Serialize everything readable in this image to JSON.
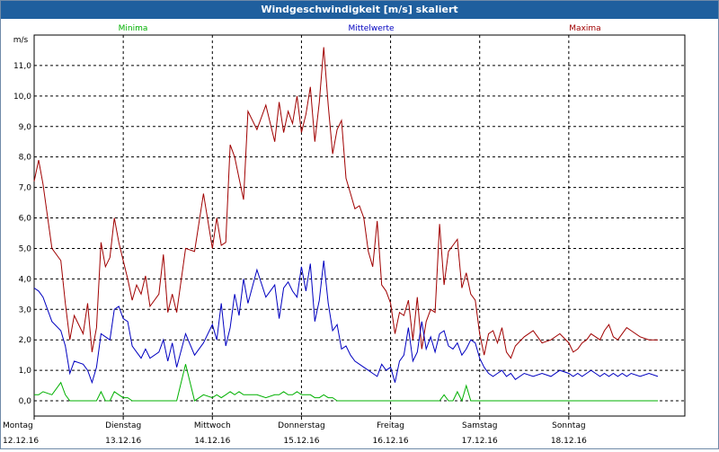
{
  "window": {
    "title": "Windgeschwindigkeit [m/s] skaliert"
  },
  "legend": {
    "min": "Minima",
    "mean": "Mittelwerte",
    "max": "Maxima"
  },
  "colors": {
    "min": "#00b000",
    "mean": "#0000c0",
    "max": "#a00000"
  },
  "chart_data": {
    "type": "line",
    "title": "Windgeschwindigkeit [m/s] skaliert",
    "ylabel": "m/s",
    "ylim": [
      -0.5,
      12.0
    ],
    "xlim": [
      0,
      7
    ],
    "yticks": [
      "0,0",
      "1,0",
      "2,0",
      "3,0",
      "4,0",
      "5,0",
      "6,0",
      "7,0",
      "8,0",
      "9,0",
      "10,0",
      "11,0"
    ],
    "xticks": [
      {
        "day": "Montag",
        "date": "12.12.16"
      },
      {
        "day": "Dienstag",
        "date": "13.12.16"
      },
      {
        "day": "Mittwoch",
        "date": "14.12.16"
      },
      {
        "day": "Donnerstag",
        "date": "15.12.16"
      },
      {
        "day": "Freitag",
        "date": "16.12.16"
      },
      {
        "day": "Samstag",
        "date": "17.12.16"
      },
      {
        "day": "Sonntag",
        "date": "18.12.16"
      }
    ],
    "grid": true,
    "series": [
      {
        "name": "Maxima",
        "x": [
          0.0,
          0.05,
          0.1,
          0.2,
          0.3,
          0.35,
          0.4,
          0.45,
          0.55,
          0.6,
          0.65,
          0.7,
          0.75,
          0.8,
          0.85,
          0.9,
          0.95,
          1.0,
          1.05,
          1.1,
          1.15,
          1.2,
          1.25,
          1.3,
          1.4,
          1.45,
          1.5,
          1.55,
          1.6,
          1.7,
          1.8,
          1.9,
          2.0,
          2.05,
          2.1,
          2.15,
          2.2,
          2.25,
          2.3,
          2.35,
          2.4,
          2.5,
          2.6,
          2.7,
          2.75,
          2.8,
          2.85,
          2.9,
          2.95,
          3.0,
          3.05,
          3.1,
          3.15,
          3.2,
          3.25,
          3.3,
          3.35,
          3.4,
          3.45,
          3.5,
          3.55,
          3.6,
          3.65,
          3.7,
          3.75,
          3.8,
          3.85,
          3.9,
          3.95,
          4.0,
          4.05,
          4.1,
          4.15,
          4.2,
          4.25,
          4.3,
          4.35,
          4.4,
          4.45,
          4.5,
          4.55,
          4.6,
          4.65,
          4.7,
          4.75,
          4.8,
          4.85,
          4.9,
          4.95,
          5.0,
          5.05,
          5.1,
          5.15,
          5.2,
          5.25,
          5.3,
          5.35,
          5.4,
          5.5,
          5.6,
          5.7,
          5.8,
          5.9,
          6.0,
          6.05,
          6.1,
          6.15,
          6.2,
          6.25,
          6.3,
          6.35,
          6.4,
          6.45,
          6.5,
          6.55,
          6.6,
          6.65,
          6.7,
          6.8,
          6.9,
          7.0
        ],
        "y": [
          7.2,
          7.9,
          7.1,
          5.0,
          4.6,
          3.2,
          2.0,
          2.8,
          2.2,
          3.2,
          1.6,
          2.4,
          5.2,
          4.4,
          4.7,
          6.0,
          5.2,
          4.6,
          4.0,
          3.3,
          3.8,
          3.5,
          4.1,
          3.1,
          3.5,
          4.8,
          2.9,
          3.5,
          2.9,
          5.0,
          4.9,
          6.8,
          5.0,
          6.0,
          5.1,
          5.2,
          8.4,
          8.0,
          7.3,
          6.6,
          9.5,
          8.9,
          9.7,
          8.5,
          9.8,
          8.8,
          9.5,
          9.1,
          10.0,
          8.8,
          9.4,
          10.3,
          8.5,
          9.8,
          11.6,
          9.7,
          8.1,
          8.9,
          9.2,
          7.3,
          6.8,
          6.3,
          6.4,
          6.0,
          4.9,
          4.4,
          5.9,
          3.8,
          3.6,
          3.2,
          2.2,
          2.9,
          2.8,
          3.3,
          2.0,
          3.4,
          1.7,
          2.6,
          3.0,
          2.9,
          5.8,
          3.8,
          4.9,
          5.1,
          5.3,
          3.7,
          4.2,
          3.5,
          3.3,
          2.2,
          1.5,
          2.2,
          2.3,
          1.9,
          2.4,
          1.6,
          1.4,
          1.8,
          2.1,
          2.3,
          1.9,
          2.0,
          2.2,
          1.9,
          1.6,
          1.7,
          1.9,
          2.0,
          2.2,
          2.1,
          2.0,
          2.3,
          2.5,
          2.1,
          2.0,
          2.2,
          2.4,
          2.3,
          2.1,
          2.0,
          2.0
        ]
      },
      {
        "name": "Mittelwerte",
        "x": [
          0.0,
          0.05,
          0.1,
          0.2,
          0.3,
          0.35,
          0.4,
          0.45,
          0.55,
          0.6,
          0.65,
          0.7,
          0.75,
          0.8,
          0.85,
          0.9,
          0.95,
          1.0,
          1.05,
          1.1,
          1.15,
          1.2,
          1.25,
          1.3,
          1.4,
          1.45,
          1.5,
          1.55,
          1.6,
          1.7,
          1.8,
          1.9,
          2.0,
          2.05,
          2.1,
          2.15,
          2.2,
          2.25,
          2.3,
          2.35,
          2.4,
          2.5,
          2.6,
          2.7,
          2.75,
          2.8,
          2.85,
          2.9,
          2.95,
          3.0,
          3.05,
          3.1,
          3.15,
          3.2,
          3.25,
          3.3,
          3.35,
          3.4,
          3.45,
          3.5,
          3.55,
          3.6,
          3.65,
          3.7,
          3.75,
          3.8,
          3.85,
          3.9,
          3.95,
          4.0,
          4.05,
          4.1,
          4.15,
          4.2,
          4.25,
          4.3,
          4.35,
          4.4,
          4.45,
          4.5,
          4.55,
          4.6,
          4.65,
          4.7,
          4.75,
          4.8,
          4.85,
          4.9,
          4.95,
          5.0,
          5.05,
          5.1,
          5.15,
          5.2,
          5.25,
          5.3,
          5.35,
          5.4,
          5.5,
          5.6,
          5.7,
          5.8,
          5.9,
          6.0,
          6.05,
          6.1,
          6.15,
          6.2,
          6.25,
          6.3,
          6.35,
          6.4,
          6.45,
          6.5,
          6.55,
          6.6,
          6.65,
          6.7,
          6.8,
          6.9,
          7.0
        ],
        "y": [
          3.7,
          3.6,
          3.4,
          2.6,
          2.3,
          1.8,
          0.9,
          1.3,
          1.2,
          1.0,
          0.6,
          1.1,
          2.2,
          2.1,
          2.0,
          3.0,
          3.1,
          2.7,
          2.6,
          1.8,
          1.6,
          1.4,
          1.7,
          1.4,
          1.6,
          2.0,
          1.3,
          1.9,
          1.1,
          2.2,
          1.5,
          1.9,
          2.5,
          2.0,
          3.2,
          1.8,
          2.4,
          3.5,
          2.8,
          4.0,
          3.2,
          4.3,
          3.4,
          3.8,
          2.7,
          3.7,
          3.9,
          3.6,
          3.4,
          4.4,
          3.6,
          4.5,
          2.6,
          3.3,
          4.6,
          3.2,
          2.3,
          2.5,
          1.7,
          1.8,
          1.5,
          1.3,
          1.2,
          1.1,
          1.0,
          0.9,
          0.8,
          1.2,
          1.0,
          1.1,
          0.6,
          1.3,
          1.5,
          2.4,
          1.3,
          1.6,
          2.6,
          1.7,
          2.1,
          1.6,
          2.2,
          2.3,
          1.8,
          1.7,
          1.9,
          1.5,
          1.7,
          2.0,
          1.9,
          1.4,
          1.1,
          0.9,
          0.8,
          0.9,
          1.0,
          0.8,
          0.9,
          0.7,
          0.9,
          0.8,
          0.9,
          0.8,
          1.0,
          0.9,
          0.8,
          0.9,
          0.8,
          0.9,
          1.0,
          0.9,
          0.8,
          0.9,
          0.8,
          0.9,
          0.8,
          0.9,
          0.8,
          0.9,
          0.8,
          0.9,
          0.8
        ]
      },
      {
        "name": "Minima",
        "x": [
          0.0,
          0.05,
          0.1,
          0.2,
          0.3,
          0.35,
          0.4,
          0.45,
          0.55,
          0.6,
          0.65,
          0.7,
          0.75,
          0.8,
          0.85,
          0.9,
          0.95,
          1.0,
          1.05,
          1.1,
          1.15,
          1.2,
          1.25,
          1.3,
          1.4,
          1.45,
          1.5,
          1.55,
          1.6,
          1.7,
          1.8,
          1.9,
          2.0,
          2.05,
          2.1,
          2.15,
          2.2,
          2.25,
          2.3,
          2.35,
          2.4,
          2.5,
          2.6,
          2.7,
          2.75,
          2.8,
          2.85,
          2.9,
          2.95,
          3.0,
          3.05,
          3.1,
          3.15,
          3.2,
          3.25,
          3.3,
          3.35,
          3.4,
          3.45,
          3.5,
          3.55,
          3.6,
          3.65,
          3.7,
          3.75,
          3.8,
          3.85,
          3.9,
          3.95,
          4.0,
          4.05,
          4.1,
          4.15,
          4.2,
          4.25,
          4.3,
          4.35,
          4.4,
          4.45,
          4.5,
          4.55,
          4.6,
          4.65,
          4.7,
          4.75,
          4.8,
          4.85,
          4.9,
          4.95,
          5.0,
          5.05,
          5.1,
          5.15,
          5.2,
          5.25,
          5.3,
          5.35,
          5.4,
          5.5,
          5.6,
          5.7,
          5.8,
          5.9,
          6.0,
          6.05,
          6.1,
          6.15,
          6.2,
          6.25,
          6.3,
          6.35,
          6.4,
          6.45,
          6.5,
          6.55,
          6.6,
          6.65,
          6.7,
          6.8,
          6.9,
          7.0
        ],
        "y": [
          0.2,
          0.2,
          0.3,
          0.2,
          0.6,
          0.2,
          0.0,
          0.0,
          0.0,
          0.0,
          0.0,
          0.0,
          0.3,
          0.0,
          0.0,
          0.3,
          0.2,
          0.1,
          0.1,
          0.0,
          0.0,
          0.0,
          0.0,
          0.0,
          0.0,
          0.0,
          0.0,
          0.0,
          0.0,
          1.2,
          0.0,
          0.2,
          0.1,
          0.2,
          0.1,
          0.2,
          0.3,
          0.2,
          0.3,
          0.2,
          0.2,
          0.2,
          0.1,
          0.2,
          0.2,
          0.3,
          0.2,
          0.2,
          0.3,
          0.2,
          0.2,
          0.2,
          0.1,
          0.1,
          0.2,
          0.1,
          0.1,
          0.0,
          0.0,
          0.0,
          0.0,
          0.0,
          0.0,
          0.0,
          0.0,
          0.0,
          0.0,
          0.0,
          0.0,
          0.0,
          0.0,
          0.0,
          0.0,
          0.0,
          0.0,
          0.0,
          0.0,
          0.0,
          0.0,
          0.0,
          0.0,
          0.2,
          0.0,
          0.0,
          0.3,
          0.0,
          0.5,
          0.0,
          0.0,
          0.0,
          0.0,
          0.0,
          0.0,
          0.0,
          0.0,
          0.0,
          0.0,
          0.0,
          0.0,
          0.0,
          0.0,
          0.0,
          0.0,
          0.0,
          0.0,
          0.0,
          0.0,
          0.0,
          0.0,
          0.0,
          0.0,
          0.0,
          0.0,
          0.0,
          0.0,
          0.0,
          0.0,
          0.0,
          0.0,
          0.0,
          0.0
        ]
      }
    ]
  }
}
